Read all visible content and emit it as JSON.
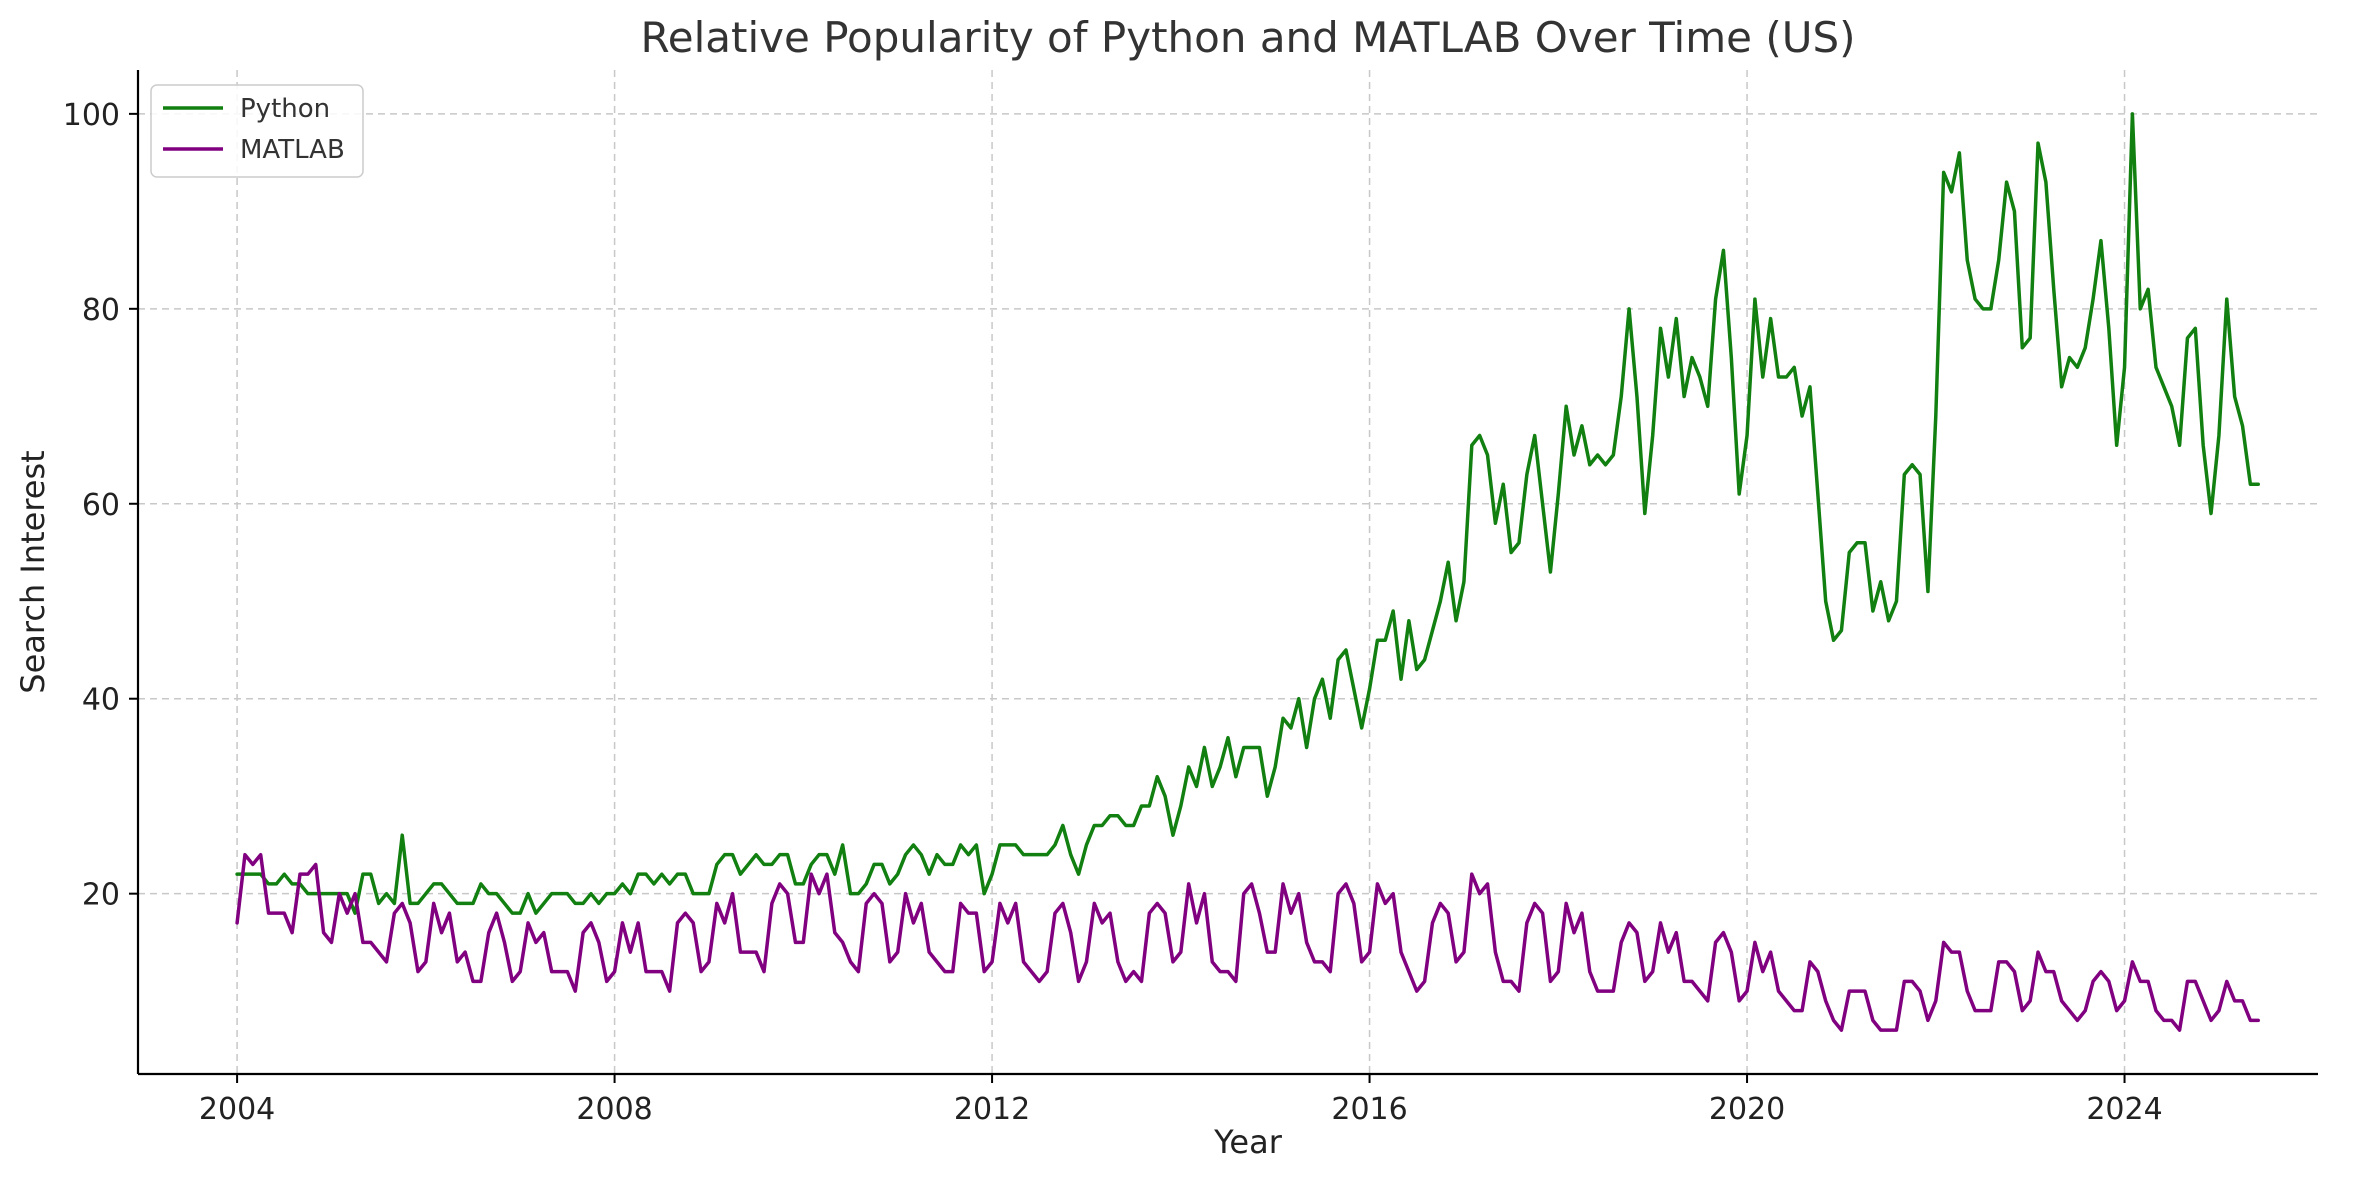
{
  "chart_data": {
    "type": "line",
    "title": "Relative Popularity of Python and MATLAB Over Time (US)",
    "xlabel": "Year",
    "ylabel": "Search Interest",
    "x_start": "2004-01",
    "x_end": "2025-06",
    "xlim": [
      2002.95,
      2026.05
    ],
    "ylim": [
      1.5,
      104.5
    ],
    "xticks": [
      2004,
      2008,
      2012,
      2016,
      2020,
      2024
    ],
    "yticks": [
      20,
      40,
      60,
      80,
      100
    ],
    "grid": true,
    "legend_position": "upper-left",
    "series": [
      {
        "name": "Python",
        "color": "#118011",
        "values": [
          22,
          22,
          22,
          22,
          21,
          21,
          22,
          21,
          21,
          20,
          20,
          20,
          20,
          20,
          20,
          18,
          22,
          22,
          19,
          20,
          19,
          26,
          19,
          19,
          20,
          21,
          21,
          20,
          19,
          19,
          19,
          21,
          20,
          20,
          19,
          18,
          18,
          20,
          18,
          19,
          20,
          20,
          20,
          19,
          19,
          20,
          19,
          20,
          20,
          21,
          20,
          22,
          22,
          21,
          22,
          21,
          22,
          22,
          20,
          20,
          20,
          23,
          24,
          24,
          22,
          23,
          24,
          23,
          23,
          24,
          24,
          21,
          21,
          23,
          24,
          24,
          22,
          25,
          20,
          20,
          21,
          23,
          23,
          21,
          22,
          24,
          25,
          24,
          22,
          24,
          23,
          23,
          25,
          24,
          25,
          20,
          22,
          25,
          25,
          25,
          24,
          24,
          24,
          24,
          25,
          27,
          24,
          22,
          25,
          27,
          27,
          28,
          28,
          27,
          27,
          29,
          29,
          32,
          30,
          26,
          29,
          33,
          31,
          35,
          31,
          33,
          36,
          32,
          35,
          35,
          35,
          30,
          33,
          38,
          37,
          40,
          35,
          40,
          42,
          38,
          44,
          45,
          41,
          37,
          41,
          46,
          46,
          49,
          42,
          48,
          43,
          44,
          47,
          50,
          54,
          48,
          52,
          66,
          67,
          65,
          58,
          62,
          55,
          56,
          63,
          67,
          60,
          53,
          61,
          70,
          65,
          68,
          64,
          65,
          64,
          65,
          71,
          80,
          71,
          59,
          67,
          78,
          73,
          79,
          71,
          75,
          73,
          70,
          81,
          86,
          75,
          61,
          67,
          81,
          73,
          79,
          73,
          73,
          74,
          69,
          72,
          61,
          50,
          46,
          47,
          55,
          56,
          56,
          49,
          52,
          48,
          50,
          63,
          64,
          63,
          51,
          69,
          94,
          92,
          96,
          85,
          81,
          80,
          80,
          85,
          93,
          90,
          76,
          77,
          97,
          93,
          82,
          72,
          75,
          74,
          76,
          81,
          87,
          78,
          66,
          74,
          100,
          80,
          82,
          74,
          72,
          70,
          66,
          77,
          78,
          66,
          59,
          67,
          81,
          71,
          68,
          62,
          62
        ]
      },
      {
        "name": "MATLAB",
        "color": "#800080",
        "values": [
          17,
          24,
          23,
          24,
          18,
          18,
          18,
          16,
          22,
          22,
          23,
          16,
          15,
          20,
          18,
          20,
          15,
          15,
          14,
          13,
          18,
          19,
          17,
          12,
          13,
          19,
          16,
          18,
          13,
          14,
          11,
          11,
          16,
          18,
          15,
          11,
          12,
          17,
          15,
          16,
          12,
          12,
          12,
          10,
          16,
          17,
          15,
          11,
          12,
          17,
          14,
          17,
          12,
          12,
          12,
          10,
          17,
          18,
          17,
          12,
          13,
          19,
          17,
          20,
          14,
          14,
          14,
          12,
          19,
          21,
          20,
          15,
          15,
          22,
          20,
          22,
          16,
          15,
          13,
          12,
          19,
          20,
          19,
          13,
          14,
          20,
          17,
          19,
          14,
          13,
          12,
          12,
          19,
          18,
          18,
          12,
          13,
          19,
          17,
          19,
          13,
          12,
          11,
          12,
          18,
          19,
          16,
          11,
          13,
          19,
          17,
          18,
          13,
          11,
          12,
          11,
          18,
          19,
          18,
          13,
          14,
          21,
          17,
          20,
          13,
          12,
          12,
          11,
          20,
          21,
          18,
          14,
          14,
          21,
          18,
          20,
          15,
          13,
          13,
          12,
          20,
          21,
          19,
          13,
          14,
          21,
          19,
          20,
          14,
          12,
          10,
          11,
          17,
          19,
          18,
          13,
          14,
          22,
          20,
          21,
          14,
          11,
          11,
          10,
          17,
          19,
          18,
          11,
          12,
          19,
          16,
          18,
          12,
          10,
          10,
          10,
          15,
          17,
          16,
          11,
          12,
          17,
          14,
          16,
          11,
          11,
          10,
          9,
          15,
          16,
          14,
          9,
          10,
          15,
          12,
          14,
          10,
          9,
          8,
          8,
          13,
          12,
          9,
          7,
          6,
          10,
          10,
          10,
          7,
          6,
          6,
          6,
          11,
          11,
          10,
          7,
          9,
          15,
          14,
          14,
          10,
          8,
          8,
          8,
          13,
          13,
          12,
          8,
          9,
          14,
          12,
          12,
          9,
          8,
          7,
          8,
          11,
          12,
          11,
          8,
          9,
          13,
          11,
          11,
          8,
          7,
          7,
          6,
          11,
          11,
          9,
          7,
          8,
          11,
          9,
          9,
          7,
          7
        ]
      }
    ]
  }
}
